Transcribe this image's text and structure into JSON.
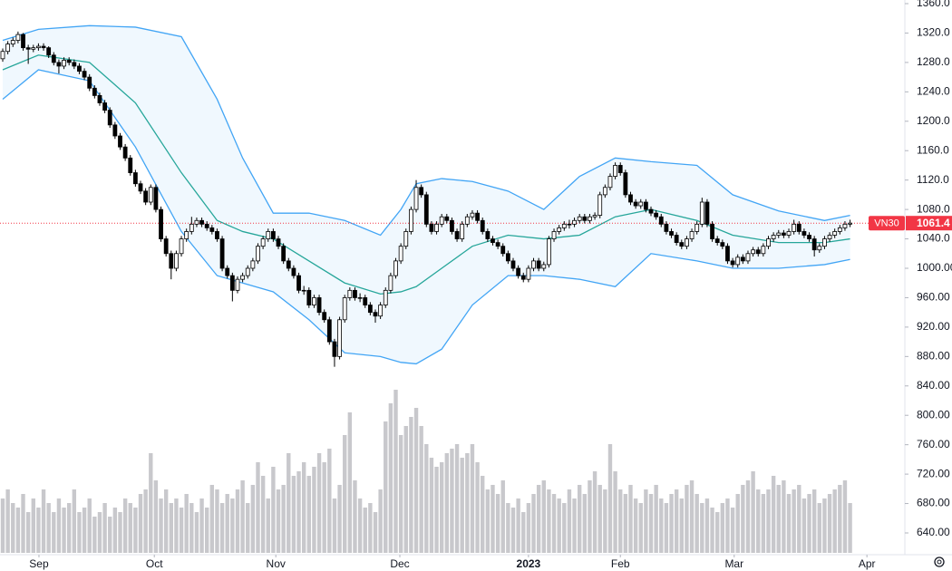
{
  "chart_data": {
    "type": "candlestick",
    "symbol": "VN30",
    "ylim": [
      640,
      1360
    ],
    "yticks": [
      {
        "value": 640,
        "label": "640.00"
      },
      {
        "value": 680,
        "label": "680.00"
      },
      {
        "value": 720,
        "label": "720.00"
      },
      {
        "value": 760,
        "label": "760.00"
      },
      {
        "value": 800,
        "label": "800.00"
      },
      {
        "value": 840,
        "label": "840.00"
      },
      {
        "value": 880,
        "label": "880.00"
      },
      {
        "value": 920,
        "label": "920.00"
      },
      {
        "value": 960,
        "label": "960.00"
      },
      {
        "value": 1000,
        "label": "1000.00"
      },
      {
        "value": 1040,
        "label": "1040.0"
      },
      {
        "value": 1080,
        "label": "1080.0"
      },
      {
        "value": 1120,
        "label": "1120.0"
      },
      {
        "value": 1160,
        "label": "1160.0"
      },
      {
        "value": 1200,
        "label": "1200.0"
      },
      {
        "value": 1240,
        "label": "1240.0"
      },
      {
        "value": 1280,
        "label": "1280.0"
      },
      {
        "value": 1320,
        "label": "1320.0"
      },
      {
        "value": 1360,
        "label": "1360.0"
      }
    ],
    "xlim": [
      0,
      172
    ],
    "xticks": [
      {
        "value": 7.1,
        "label": "Sep"
      },
      {
        "value": 29.7,
        "label": "Oct"
      },
      {
        "value": 53.5,
        "label": "Nov"
      },
      {
        "value": 77.8,
        "label": "Dec"
      },
      {
        "value": 103,
        "label": "2023"
      },
      {
        "value": 121,
        "label": "Feb"
      },
      {
        "value": 143.3,
        "label": "Mar"
      },
      {
        "value": 169.3,
        "label": "Apr"
      }
    ],
    "grid": false,
    "up_color": "#ffffff",
    "down_color": "#000000",
    "band_color": "#42a5f5",
    "middle_color": "#26a69a",
    "volume_color": "#c8c8cc",
    "last_color": "#f23645",
    "ohlc": [
      [
        1285,
        1299,
        1281,
        1295
      ],
      [
        1295,
        1309,
        1291,
        1305
      ],
      [
        1305,
        1314,
        1301,
        1310
      ],
      [
        1310,
        1322,
        1306,
        1318
      ],
      [
        1318,
        1320,
        1296,
        1300
      ],
      [
        1300,
        1304,
        1278,
        1298
      ],
      [
        1298,
        1304,
        1294,
        1300
      ],
      [
        1300,
        1306,
        1296,
        1302
      ],
      [
        1302,
        1306,
        1296,
        1300
      ],
      [
        1300,
        1302,
        1286,
        1290
      ],
      [
        1290,
        1294,
        1276,
        1280
      ],
      [
        1280,
        1284,
        1265,
        1275
      ],
      [
        1275,
        1287,
        1271,
        1283
      ],
      [
        1283,
        1287,
        1276,
        1280
      ],
      [
        1280,
        1284,
        1271,
        1275
      ],
      [
        1275,
        1279,
        1264,
        1268
      ],
      [
        1268,
        1272,
        1256,
        1260
      ],
      [
        1260,
        1264,
        1241,
        1245
      ],
      [
        1245,
        1249,
        1231,
        1235
      ],
      [
        1235,
        1239,
        1221,
        1225
      ],
      [
        1225,
        1229,
        1211,
        1215
      ],
      [
        1215,
        1219,
        1191,
        1195
      ],
      [
        1195,
        1199,
        1176,
        1180
      ],
      [
        1180,
        1184,
        1161,
        1165
      ],
      [
        1165,
        1169,
        1146,
        1150
      ],
      [
        1150,
        1154,
        1126,
        1130
      ],
      [
        1130,
        1134,
        1111,
        1115
      ],
      [
        1115,
        1119,
        1101,
        1105
      ],
      [
        1105,
        1109,
        1086,
        1090
      ],
      [
        1090,
        1114,
        1086,
        1110
      ],
      [
        1110,
        1114,
        1076,
        1080
      ],
      [
        1080,
        1084,
        1036,
        1040
      ],
      [
        1040,
        1044,
        1016,
        1020
      ],
      [
        1020,
        1024,
        985,
        1000
      ],
      [
        1000,
        1024,
        996,
        1020
      ],
      [
        1020,
        1044,
        1016,
        1040
      ],
      [
        1040,
        1054,
        1036,
        1050
      ],
      [
        1050,
        1070,
        1046,
        1060
      ],
      [
        1060,
        1069,
        1056,
        1065
      ],
      [
        1065,
        1069,
        1056,
        1060
      ],
      [
        1060,
        1064,
        1051,
        1055
      ],
      [
        1055,
        1059,
        1046,
        1050
      ],
      [
        1050,
        1054,
        1036,
        1040
      ],
      [
        1040,
        1044,
        996,
        1000
      ],
      [
        1000,
        1004,
        986,
        990
      ],
      [
        990,
        994,
        955,
        970
      ],
      [
        970,
        989,
        966,
        985
      ],
      [
        985,
        994,
        981,
        990
      ],
      [
        990,
        1004,
        986,
        1000
      ],
      [
        1000,
        1014,
        996,
        1010
      ],
      [
        1010,
        1034,
        1006,
        1030
      ],
      [
        1030,
        1044,
        1026,
        1040
      ],
      [
        1040,
        1054,
        1036,
        1050
      ],
      [
        1050,
        1054,
        1036,
        1040
      ],
      [
        1040,
        1044,
        1026,
        1030
      ],
      [
        1030,
        1034,
        1006,
        1010
      ],
      [
        1010,
        1014,
        996,
        1000
      ],
      [
        1000,
        1004,
        986,
        990
      ],
      [
        990,
        994,
        966,
        970
      ],
      [
        970,
        976,
        964,
        970
      ],
      [
        970,
        974,
        946,
        950
      ],
      [
        950,
        964,
        946,
        960
      ],
      [
        960,
        964,
        936,
        940
      ],
      [
        940,
        944,
        926,
        930
      ],
      [
        930,
        934,
        896,
        900
      ],
      [
        900,
        904,
        866,
        880
      ],
      [
        880,
        934,
        876,
        930
      ],
      [
        930,
        964,
        926,
        960
      ],
      [
        960,
        974,
        956,
        970
      ],
      [
        970,
        974,
        956,
        960
      ],
      [
        960,
        966,
        954,
        960
      ],
      [
        960,
        964,
        946,
        950
      ],
      [
        950,
        954,
        936,
        940
      ],
      [
        940,
        944,
        926,
        935
      ],
      [
        935,
        954,
        931,
        950
      ],
      [
        950,
        974,
        946,
        970
      ],
      [
        970,
        994,
        966,
        990
      ],
      [
        990,
        1014,
        986,
        1010
      ],
      [
        1010,
        1034,
        1006,
        1030
      ],
      [
        1030,
        1054,
        1026,
        1050
      ],
      [
        1050,
        1084,
        1046,
        1080
      ],
      [
        1080,
        1120,
        1076,
        1110
      ],
      [
        1110,
        1114,
        1096,
        1100
      ],
      [
        1100,
        1104,
        1056,
        1060
      ],
      [
        1060,
        1064,
        1046,
        1050
      ],
      [
        1050,
        1064,
        1046,
        1060
      ],
      [
        1060,
        1074,
        1056,
        1070
      ],
      [
        1070,
        1074,
        1061,
        1065
      ],
      [
        1065,
        1069,
        1046,
        1050
      ],
      [
        1050,
        1054,
        1036,
        1040
      ],
      [
        1040,
        1064,
        1036,
        1060
      ],
      [
        1060,
        1074,
        1056,
        1070
      ],
      [
        1070,
        1079,
        1066,
        1075
      ],
      [
        1075,
        1079,
        1061,
        1065
      ],
      [
        1065,
        1069,
        1046,
        1050
      ],
      [
        1050,
        1054,
        1036,
        1040
      ],
      [
        1040,
        1044,
        1031,
        1035
      ],
      [
        1035,
        1039,
        1026,
        1030
      ],
      [
        1030,
        1034,
        1016,
        1020
      ],
      [
        1020,
        1024,
        1006,
        1010
      ],
      [
        1010,
        1014,
        996,
        1000
      ],
      [
        1000,
        1004,
        986,
        990
      ],
      [
        990,
        994,
        981,
        985
      ],
      [
        985,
        1004,
        981,
        1000
      ],
      [
        1000,
        1014,
        996,
        1010
      ],
      [
        1010,
        1014,
        996,
        1000
      ],
      [
        1000,
        1009,
        996,
        1005
      ],
      [
        1005,
        1044,
        1001,
        1040
      ],
      [
        1040,
        1054,
        1036,
        1050
      ],
      [
        1050,
        1059,
        1046,
        1055
      ],
      [
        1055,
        1064,
        1051,
        1060
      ],
      [
        1060,
        1066,
        1054,
        1060
      ],
      [
        1060,
        1069,
        1056,
        1065
      ],
      [
        1065,
        1074,
        1061,
        1070
      ],
      [
        1070,
        1074,
        1061,
        1065
      ],
      [
        1065,
        1074,
        1061,
        1070
      ],
      [
        1070,
        1076,
        1066,
        1072
      ],
      [
        1072,
        1104,
        1068,
        1100
      ],
      [
        1100,
        1114,
        1096,
        1110
      ],
      [
        1110,
        1129,
        1106,
        1125
      ],
      [
        1125,
        1144,
        1121,
        1140
      ],
      [
        1140,
        1144,
        1126,
        1130
      ],
      [
        1130,
        1134,
        1096,
        1100
      ],
      [
        1100,
        1104,
        1086,
        1090
      ],
      [
        1090,
        1094,
        1081,
        1085
      ],
      [
        1085,
        1094,
        1081,
        1090
      ],
      [
        1090,
        1094,
        1076,
        1080
      ],
      [
        1080,
        1084,
        1071,
        1075
      ],
      [
        1075,
        1079,
        1066,
        1070
      ],
      [
        1070,
        1074,
        1056,
        1060
      ],
      [
        1060,
        1064,
        1046,
        1050
      ],
      [
        1050,
        1054,
        1041,
        1045
      ],
      [
        1045,
        1049,
        1031,
        1035
      ],
      [
        1035,
        1039,
        1026,
        1030
      ],
      [
        1030,
        1044,
        1026,
        1040
      ],
      [
        1040,
        1054,
        1036,
        1050
      ],
      [
        1050,
        1064,
        1046,
        1060
      ],
      [
        1060,
        1096,
        1056,
        1090
      ],
      [
        1090,
        1094,
        1056,
        1060
      ],
      [
        1060,
        1064,
        1036,
        1040
      ],
      [
        1040,
        1044,
        1031,
        1035
      ],
      [
        1035,
        1039,
        1026,
        1030
      ],
      [
        1030,
        1034,
        1006,
        1010
      ],
      [
        1010,
        1014,
        1001,
        1005
      ],
      [
        1005,
        1019,
        1001,
        1015
      ],
      [
        1015,
        1019,
        1006,
        1010
      ],
      [
        1010,
        1024,
        1006,
        1020
      ],
      [
        1020,
        1029,
        1016,
        1025
      ],
      [
        1025,
        1029,
        1016,
        1020
      ],
      [
        1020,
        1034,
        1016,
        1030
      ],
      [
        1030,
        1044,
        1026,
        1040
      ],
      [
        1040,
        1049,
        1036,
        1045
      ],
      [
        1045,
        1052,
        1041,
        1048
      ],
      [
        1048,
        1052,
        1041,
        1045
      ],
      [
        1045,
        1054,
        1041,
        1050
      ],
      [
        1050,
        1066,
        1046,
        1060
      ],
      [
        1060,
        1064,
        1046,
        1050
      ],
      [
        1050,
        1054,
        1041,
        1045
      ],
      [
        1045,
        1049,
        1036,
        1040
      ],
      [
        1040,
        1044,
        1016,
        1025
      ],
      [
        1025,
        1034,
        1021,
        1030
      ],
      [
        1030,
        1044,
        1026,
        1040
      ],
      [
        1040,
        1049,
        1036,
        1045
      ],
      [
        1045,
        1054,
        1041,
        1050
      ],
      [
        1050,
        1059,
        1046,
        1055
      ],
      [
        1055,
        1064,
        1051,
        1060
      ],
      [
        1060,
        1066,
        1056,
        1061.4
      ]
    ],
    "volume": [
      60,
      70,
      55,
      50,
      65,
      45,
      60,
      50,
      70,
      55,
      45,
      60,
      50,
      55,
      70,
      45,
      50,
      60,
      40,
      45,
      55,
      40,
      50,
      45,
      60,
      55,
      50,
      65,
      70,
      110,
      80,
      60,
      70,
      55,
      60,
      50,
      65,
      55,
      45,
      60,
      50,
      75,
      70,
      55,
      65,
      60,
      70,
      80,
      55,
      75,
      100,
      85,
      60,
      95,
      70,
      75,
      110,
      85,
      90,
      100,
      85,
      95,
      110,
      100,
      115,
      60,
      75,
      130,
      155,
      80,
      60,
      50,
      55,
      45,
      70,
      145,
      165,
      180,
      130,
      140,
      150,
      160,
      140,
      120,
      105,
      95,
      100,
      110,
      115,
      120,
      105,
      110,
      120,
      100,
      85,
      70,
      75,
      65,
      80,
      55,
      50,
      60,
      45,
      55,
      65,
      75,
      80,
      70,
      65,
      60,
      55,
      70,
      60,
      75,
      65,
      80,
      90,
      75,
      70,
      120,
      90,
      70,
      65,
      75,
      60,
      55,
      70,
      65,
      75,
      60,
      55,
      65,
      70,
      60,
      75,
      80,
      65,
      55,
      60,
      50,
      45,
      55,
      60,
      50,
      65,
      75,
      80,
      90,
      70,
      65,
      70,
      85,
      75,
      80,
      65,
      70,
      75,
      60,
      65,
      70,
      55,
      60,
      65,
      70,
      75,
      80,
      55
    ],
    "bb_x": [
      0,
      7,
      17,
      26,
      35,
      42,
      47,
      53,
      60,
      67,
      74,
      78,
      81,
      86,
      92,
      99,
      106,
      113,
      120,
      127,
      136,
      143,
      152,
      161,
      166
    ],
    "bb_upper": [
      1310,
      1325,
      1330,
      1328,
      1315,
      1230,
      1150,
      1075,
      1075,
      1065,
      1045,
      1080,
      1115,
      1122,
      1118,
      1105,
      1080,
      1125,
      1150,
      1145,
      1140,
      1100,
      1078,
      1065,
      1072
    ],
    "bb_middle": [
      1270,
      1290,
      1280,
      1225,
      1130,
      1065,
      1050,
      1040,
      1010,
      980,
      965,
      968,
      975,
      1000,
      1030,
      1045,
      1040,
      1045,
      1070,
      1080,
      1065,
      1045,
      1035,
      1035,
      1040
    ],
    "bb_lower": [
      1230,
      1270,
      1255,
      1165,
      1050,
      990,
      980,
      968,
      930,
      885,
      880,
      872,
      870,
      890,
      950,
      990,
      990,
      985,
      975,
      1020,
      1010,
      1000,
      1000,
      1005,
      1012
    ]
  }
}
